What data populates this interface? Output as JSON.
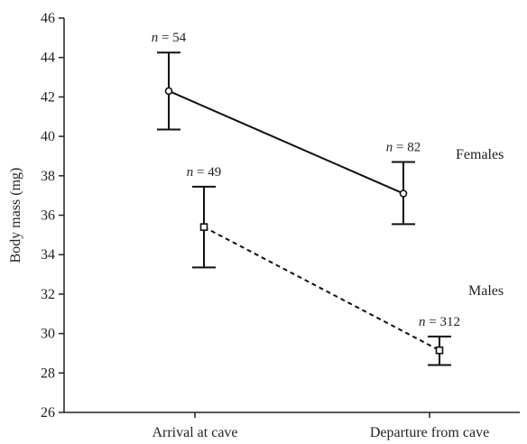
{
  "chart_data": {
    "type": "line",
    "ylabel": "Body mass (mg)",
    "xlabel": "",
    "categories": [
      "Arrival at cave",
      "Departure from cave"
    ],
    "ylim": [
      26,
      46
    ],
    "yticks": [
      26,
      28,
      30,
      32,
      34,
      36,
      38,
      40,
      42,
      44,
      46
    ],
    "grid": false,
    "series": [
      {
        "name": "Females",
        "marker": "circle",
        "line_style": "solid",
        "values": [
          42.3,
          37.1
        ],
        "error_low": [
          40.35,
          35.55
        ],
        "error_high": [
          44.25,
          38.7
        ],
        "n_labels": [
          "n = 54",
          "n = 82"
        ]
      },
      {
        "name": "Males",
        "marker": "square",
        "line_style": "dashed",
        "values": [
          35.4,
          29.15
        ],
        "error_low": [
          33.35,
          28.4
        ],
        "error_high": [
          37.45,
          29.85
        ],
        "n_labels": [
          "n = 49",
          "n = 312"
        ]
      }
    ]
  }
}
